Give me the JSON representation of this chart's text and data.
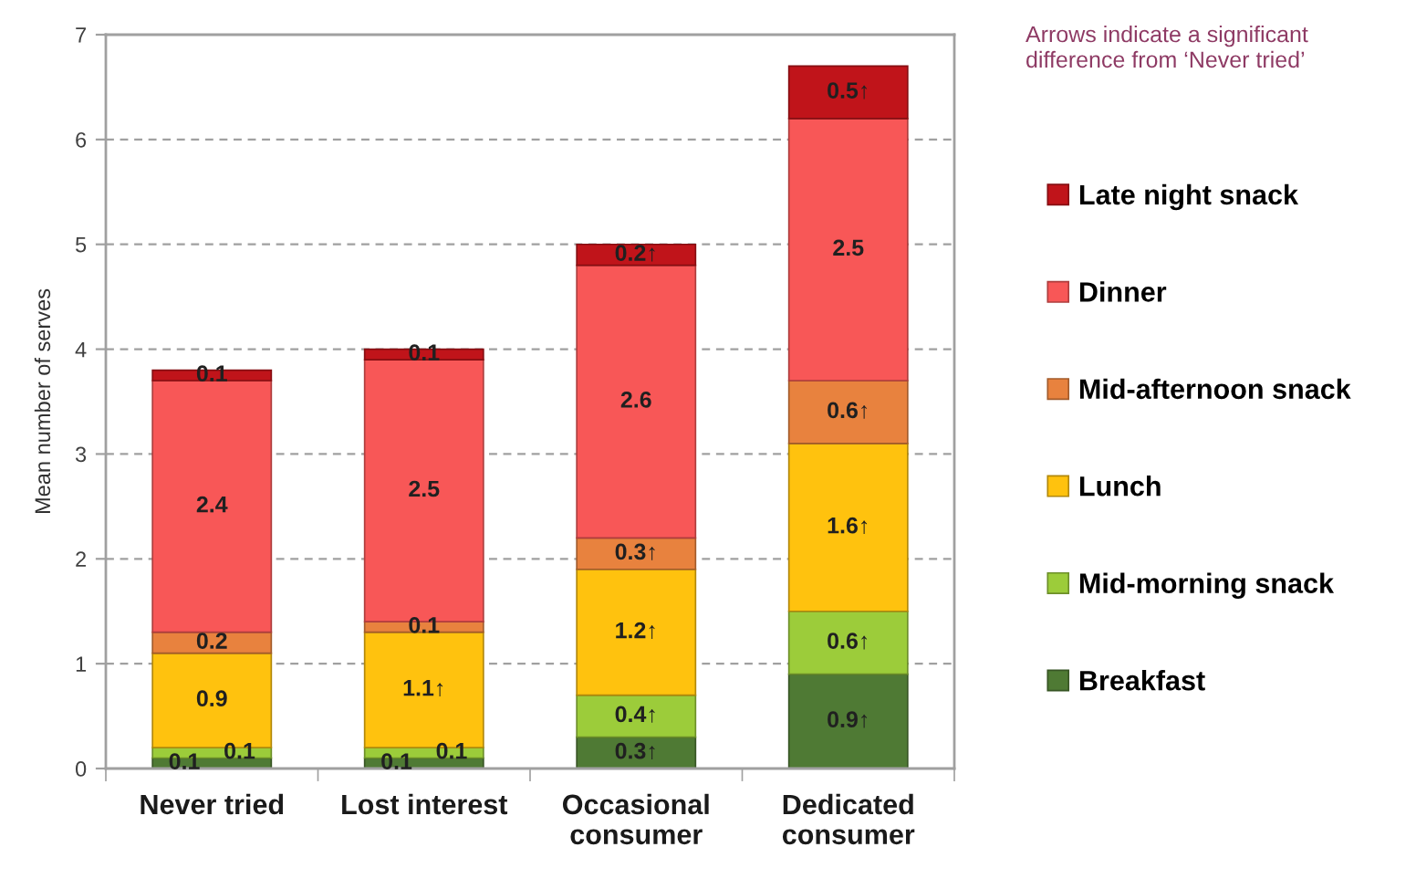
{
  "chart_data": {
    "type": "bar",
    "stacked": true,
    "ylabel": "Mean number of serves",
    "categories": [
      "Never tried",
      "Lost interest",
      "Occasional\nconsumer",
      "Dedicated\nconsumer"
    ],
    "series": [
      {
        "name": "Breakfast",
        "color": "#4f7a34",
        "values": [
          0.1,
          0.1,
          0.3,
          0.9
        ],
        "value_labels": [
          "0.1",
          "0.1",
          "0.3↑",
          "0.9↑"
        ]
      },
      {
        "name": "Mid-morning snack",
        "color": "#9ccc3a",
        "values": [
          0.1,
          0.1,
          0.4,
          0.6
        ],
        "value_labels": [
          "0.1",
          "0.1",
          "0.4↑",
          "0.6↑"
        ]
      },
      {
        "name": "Lunch",
        "color": "#ffc20e",
        "values": [
          0.9,
          1.1,
          1.2,
          1.6
        ],
        "value_labels": [
          "0.9",
          "1.1↑",
          "1.2↑",
          "1.6↑"
        ]
      },
      {
        "name": "Mid-afternoon snack",
        "color": "#e8823e",
        "values": [
          0.2,
          0.1,
          0.3,
          0.6
        ],
        "value_labels": [
          "0.2",
          "0.1",
          "0.3↑",
          "0.6↑"
        ]
      },
      {
        "name": "Dinner",
        "color": "#f85757",
        "values": [
          2.4,
          2.5,
          2.6,
          2.5
        ],
        "value_labels": [
          "2.4",
          "2.5",
          "2.6",
          "2.5"
        ]
      },
      {
        "name": "Late night snack",
        "color": "#c0141a",
        "values": [
          0.1,
          0.1,
          0.2,
          0.5
        ],
        "value_labels": [
          "0.1",
          "0.1",
          "0.2↑",
          "0.5↑"
        ]
      }
    ],
    "ylim": [
      0,
      7
    ],
    "yticks": [
      0,
      1,
      2,
      3,
      4,
      5,
      6,
      7
    ],
    "grid": "y",
    "legend": "right",
    "annotations": [
      "Arrows indicate a significant\ndifference from ‘Never tried’"
    ]
  }
}
